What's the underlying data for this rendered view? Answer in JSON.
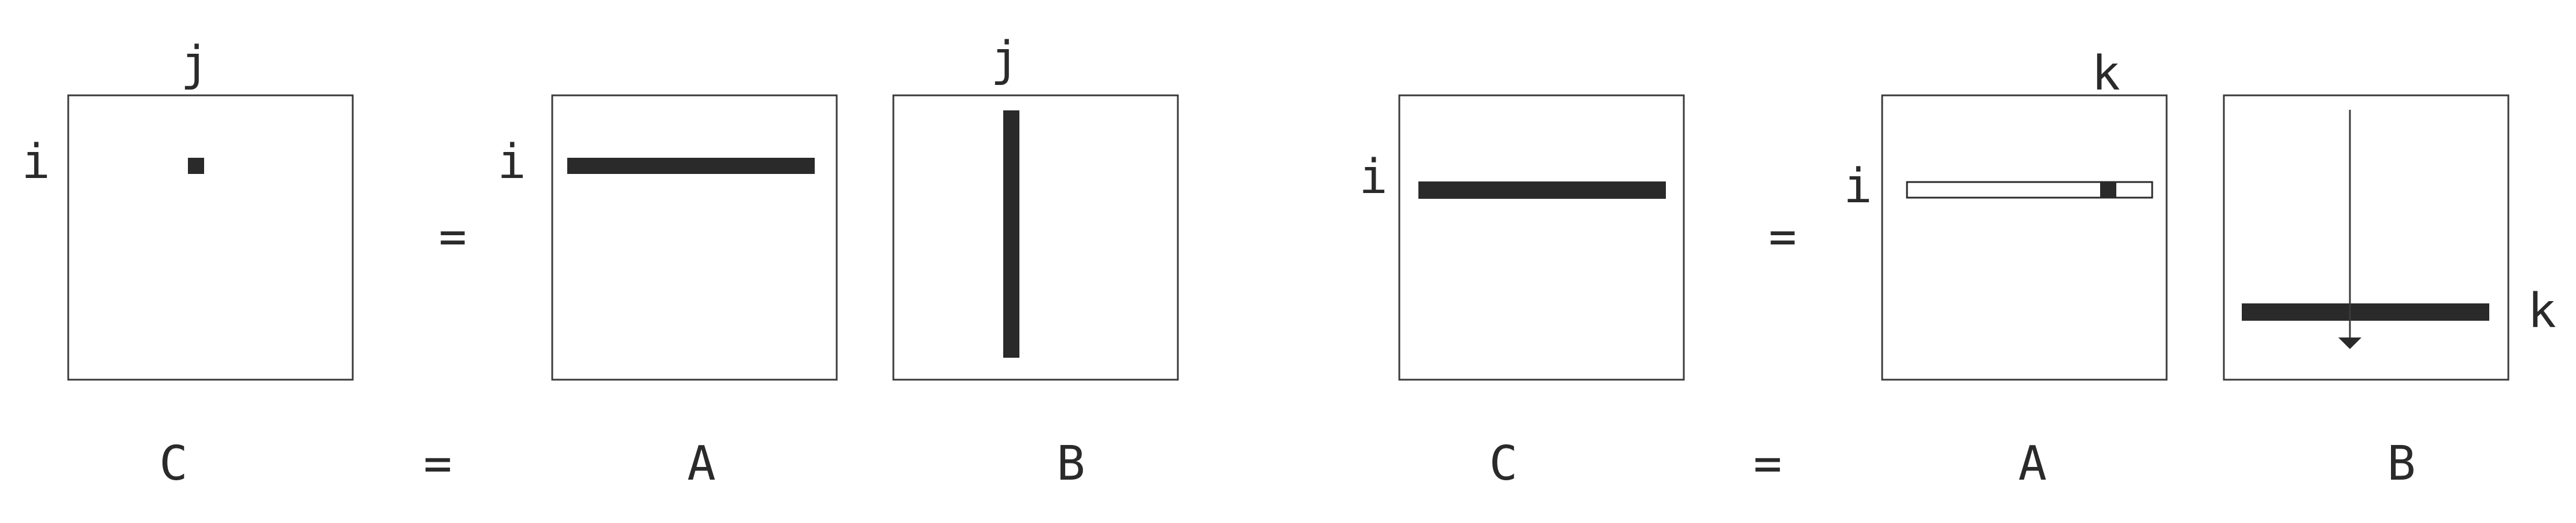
{
  "diagram": {
    "left": {
      "c_matrix": {
        "row_index": "i",
        "col_index": "j",
        "caption": "C"
      },
      "equals": "=",
      "a_matrix": {
        "row_index": "i",
        "caption": "A"
      },
      "b_matrix": {
        "col_index": "j",
        "caption": "B"
      },
      "caption_equals": "="
    },
    "right": {
      "c_matrix": {
        "row_index": "i",
        "caption": "C"
      },
      "equals": "=",
      "a_matrix": {
        "row_index": "i",
        "col_index": "k",
        "caption": "A"
      },
      "b_matrix": {
        "row_index": "k",
        "caption": "B"
      },
      "caption_equals": "="
    }
  }
}
